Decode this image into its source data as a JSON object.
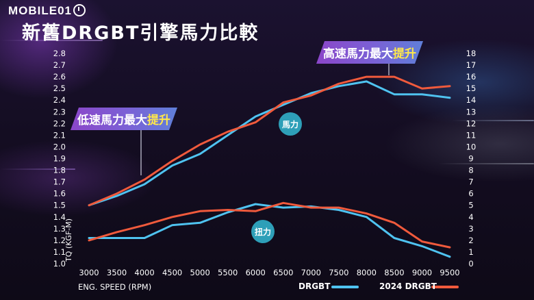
{
  "header": {
    "logo_text": "MOBILE01",
    "title": "新舊DRGBT引擎馬力比較"
  },
  "callouts": {
    "low": {
      "text": "低速馬力最大",
      "highlight": "提升"
    },
    "high": {
      "text": "高速馬力最大",
      "highlight": "提升"
    }
  },
  "colors": {
    "drgbt": "#4fc3f0",
    "drgbt_2024": "#f05a3c",
    "label_bubble": "#2e9fb8",
    "highlight": "#ffe94a"
  },
  "chart_data": {
    "type": "line",
    "xlabel": "ENG. SPEED (RPM)",
    "ylabel": "TQ (KGF-M)",
    "x": [
      3000,
      3500,
      4000,
      4500,
      5000,
      5500,
      6000,
      6500,
      7000,
      7500,
      8000,
      8500,
      9000,
      9500
    ],
    "y_left": {
      "range": [
        1.0,
        2.8
      ],
      "ticks": [
        "1.0",
        "1.1",
        "1.2",
        "1.3",
        "1.4",
        "1.5",
        "1.6",
        "1.7",
        "1.8",
        "1.9",
        "2.0",
        "2.1",
        "2.2",
        "2.3",
        "2.4",
        "2.5",
        "2.6",
        "2.7",
        "2.8"
      ]
    },
    "y_right": {
      "range": [
        0,
        18
      ],
      "ticks": [
        "0",
        "1",
        "2",
        "3",
        "4",
        "5",
        "6",
        "7",
        "8",
        "9",
        "10",
        "11",
        "12",
        "13",
        "14",
        "15",
        "16",
        "17",
        "18"
      ]
    },
    "groups": [
      {
        "label": "馬力",
        "axis": "right",
        "series": [
          {
            "name": "DRGBT",
            "values": [
              5.0,
              5.8,
              6.8,
              8.4,
              9.4,
              11.0,
              12.6,
              13.6,
              14.6,
              15.2,
              15.6,
              14.5,
              14.5,
              14.2
            ]
          },
          {
            "name": "2024 DRGBT",
            "values": [
              5.0,
              6.0,
              7.2,
              8.8,
              10.2,
              11.3,
              12.1,
              13.8,
              14.4,
              15.4,
              16.0,
              16.0,
              15.0,
              15.2
            ]
          }
        ]
      },
      {
        "label": "扭力",
        "axis": "left",
        "series": [
          {
            "name": "DRGBT",
            "values": [
              1.22,
              1.22,
              1.22,
              1.33,
              1.35,
              1.44,
              1.51,
              1.48,
              1.49,
              1.46,
              1.4,
              1.22,
              1.15,
              1.06
            ]
          },
          {
            "name": "2024 DRGBT",
            "values": [
              1.2,
              1.27,
              1.33,
              1.4,
              1.45,
              1.46,
              1.45,
              1.52,
              1.48,
              1.48,
              1.43,
              1.35,
              1.19,
              1.14
            ]
          }
        ]
      }
    ],
    "legend": [
      {
        "name": "DRGBT",
        "color": "#4fc3f0"
      },
      {
        "name": "2024 DRGBT",
        "color": "#f05a3c"
      }
    ],
    "legend_position": "bottom-right",
    "grid": false
  }
}
